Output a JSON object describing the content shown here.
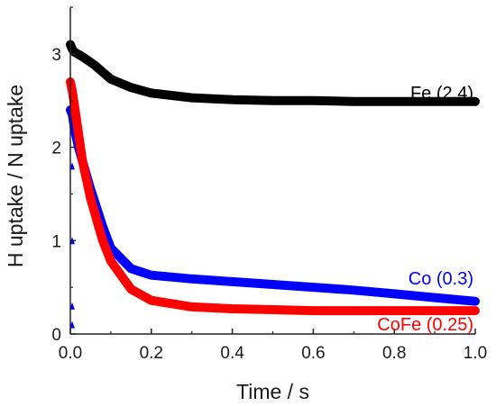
{
  "chart_data": {
    "type": "line",
    "title": "",
    "xlabel": "Time / s",
    "ylabel": "H uptake / N uptake",
    "xlim": [
      0,
      1.0
    ],
    "ylim": [
      0,
      3.5
    ],
    "xticks": [
      "0.0",
      "0.2",
      "0.4",
      "0.6",
      "0.8",
      "1.0"
    ],
    "yticks": [
      "0",
      "1",
      "2",
      "3"
    ],
    "grid": false,
    "legend": "none",
    "series": [
      {
        "name": "Fe (2.4)",
        "color": "#000000",
        "x": [
          0.0,
          0.005,
          0.01,
          0.03,
          0.06,
          0.1,
          0.15,
          0.2,
          0.3,
          0.4,
          0.5,
          0.6,
          0.7,
          0.8,
          0.9,
          1.0
        ],
        "y": [
          3.1,
          3.05,
          3.02,
          2.97,
          2.88,
          2.73,
          2.64,
          2.58,
          2.53,
          2.51,
          2.5,
          2.5,
          2.49,
          2.49,
          2.49,
          2.49
        ]
      },
      {
        "name": "Co (0.3)",
        "color": "#0000ff",
        "x": [
          0.0,
          0.005,
          0.01,
          0.02,
          0.03,
          0.05,
          0.08,
          0.1,
          0.15,
          0.2,
          0.3,
          0.4,
          0.5,
          0.6,
          0.7,
          0.8,
          0.9,
          1.0
        ],
        "y": [
          2.4,
          2.35,
          2.2,
          2.0,
          1.85,
          1.55,
          1.15,
          0.92,
          0.7,
          0.63,
          0.59,
          0.56,
          0.53,
          0.5,
          0.47,
          0.43,
          0.39,
          0.35
        ]
      },
      {
        "name": "CoFe (0.25)",
        "color": "#ff0000",
        "x": [
          0.0,
          0.005,
          0.01,
          0.02,
          0.03,
          0.05,
          0.08,
          0.1,
          0.15,
          0.2,
          0.3,
          0.4,
          0.5,
          0.6,
          0.7,
          0.8,
          0.9,
          1.0
        ],
        "y": [
          2.7,
          2.6,
          2.45,
          2.15,
          1.85,
          1.45,
          1.0,
          0.78,
          0.48,
          0.36,
          0.29,
          0.27,
          0.26,
          0.25,
          0.25,
          0.25,
          0.25,
          0.25
        ]
      }
    ],
    "markers": {
      "color": "#0000ff",
      "x": 0.0,
      "y": [
        0.1,
        0.3,
        1.0,
        1.8
      ]
    }
  }
}
